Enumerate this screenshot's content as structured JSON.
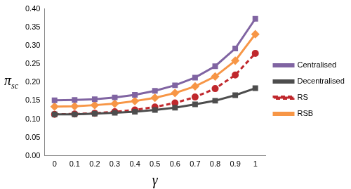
{
  "chart_data": {
    "type": "line",
    "x_label": "γ",
    "y_label": "πsc",
    "categories": [
      "0",
      "0.1",
      "0.2",
      "0.3",
      "0.4",
      "0.5",
      "0.6",
      "0.7",
      "0.8",
      "0.9",
      "1"
    ],
    "ylim": [
      0,
      0.4
    ],
    "yticks": [
      {
        "value": 0,
        "label": "0.00"
      },
      {
        "value": 0.05,
        "label": "0.05"
      },
      {
        "value": 0.1,
        "label": "0.10"
      },
      {
        "value": 0.15,
        "label": "0.15"
      },
      {
        "value": 0.2,
        "label": "0.20"
      },
      {
        "value": 0.25,
        "label": "0.25"
      },
      {
        "value": 0.3,
        "label": "0.30"
      },
      {
        "value": 0.35,
        "label": "0.35"
      },
      {
        "value": 0.4,
        "label": "0.40"
      }
    ],
    "grid": false,
    "legend": "right",
    "series": [
      {
        "name": "Centralised",
        "color": "#8064a2",
        "marker": "square",
        "line_style": "solid",
        "values": [
          0.151,
          0.152,
          0.154,
          0.159,
          0.166,
          0.177,
          0.192,
          0.213,
          0.244,
          0.292,
          0.373
        ]
      },
      {
        "name": "Decentralised",
        "color": "#4d4d4d",
        "marker": "square",
        "line_style": "solid",
        "values": [
          0.113,
          0.113,
          0.115,
          0.117,
          0.12,
          0.125,
          0.131,
          0.14,
          0.15,
          0.165,
          0.184
        ]
      },
      {
        "name": "RS",
        "color": "#c0282d",
        "marker": "circle",
        "line_style": "dashed",
        "values": [
          0.113,
          0.114,
          0.116,
          0.12,
          0.125,
          0.133,
          0.144,
          0.16,
          0.183,
          0.22,
          0.279
        ]
      },
      {
        "name": "RSB",
        "color": "#f79646",
        "marker": "diamond",
        "line_style": "solid",
        "values": [
          0.134,
          0.135,
          0.138,
          0.142,
          0.149,
          0.158,
          0.171,
          0.189,
          0.216,
          0.259,
          0.331
        ]
      }
    ]
  }
}
